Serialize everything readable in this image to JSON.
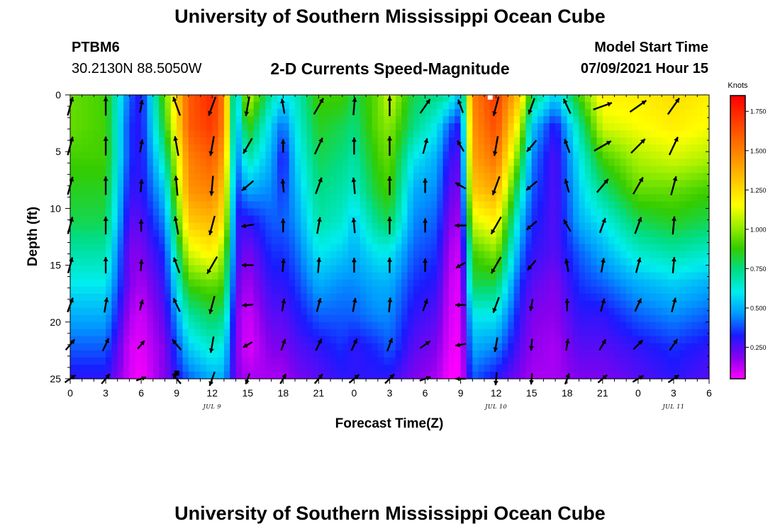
{
  "header": {
    "title": "University of Southern Mississippi Ocean Cube",
    "station": "PTBM6",
    "coords": "30.2130N  88.5050W",
    "subtitle": "2-D Currents Speed-Magnitude",
    "model_label": "Model Start Time",
    "model_time": "07/09/2021 Hour 15"
  },
  "footer": {
    "title": "University of Southern Mississippi Ocean Cube"
  },
  "chart_data": {
    "type": "heatmap",
    "x_title": "Forecast Time(Z)",
    "y_title": "Depth (ft)",
    "x_tick_labels": [
      "0",
      "3",
      "6",
      "9",
      "12",
      "15",
      "18",
      "21",
      "0",
      "3",
      "6",
      "9",
      "12",
      "15",
      "18",
      "21",
      "0",
      "3",
      "6"
    ],
    "x_range_hours": [
      0,
      54
    ],
    "x_major_step_hours": 3,
    "date_labels": [
      {
        "label": "JUL 9",
        "hour": 12
      },
      {
        "label": "JUL 10",
        "hour": 36
      },
      {
        "label": "JUL 11",
        "hour": 51
      }
    ],
    "y_ticks": [
      0,
      5,
      10,
      15,
      20,
      25
    ],
    "y_range": [
      0,
      25
    ],
    "y_inverted": true,
    "colorbar": {
      "title": "Knots",
      "labels": [
        "1.750",
        "1.500",
        "1.250",
        "1.000",
        "0.750",
        "0.500",
        "0.250"
      ],
      "values": [
        1.75,
        1.5,
        1.25,
        1.0,
        0.75,
        0.5,
        0.25
      ],
      "range": [
        0.05,
        1.85
      ],
      "colors": [
        "#ff00ff",
        "#8800ee",
        "#1a1aff",
        "#0099ff",
        "#00eeee",
        "#00dd88",
        "#33cc00",
        "#99ee00",
        "#ffff00",
        "#ffcc00",
        "#ff9900",
        "#ff6600",
        "#ff3300",
        "#ff0000"
      ]
    },
    "speed_profiles": [
      {
        "t": 0,
        "v": [
          0.95,
          0.95,
          0.9,
          0.85,
          0.8,
          0.7,
          0.6,
          0.5,
          0.4,
          0.3
        ]
      },
      {
        "t": 3,
        "v": [
          0.9,
          0.9,
          0.9,
          0.85,
          0.8,
          0.7,
          0.6,
          0.5,
          0.4,
          0.3
        ]
      },
      {
        "t": 5,
        "v": [
          0.4,
          0.35,
          0.35,
          0.3,
          0.25,
          0.2,
          0.2,
          0.15,
          0.1,
          0.1
        ]
      },
      {
        "t": 6,
        "v": [
          0.3,
          0.3,
          0.3,
          0.3,
          0.25,
          0.2,
          0.15,
          0.1,
          0.08,
          0.05
        ]
      },
      {
        "t": 8,
        "v": [
          0.95,
          0.85,
          0.7,
          0.55,
          0.45,
          0.35,
          0.3,
          0.25,
          0.2,
          0.2
        ]
      },
      {
        "t": 10,
        "v": [
          1.6,
          1.6,
          1.5,
          1.45,
          1.3,
          1.1,
          0.9,
          0.7,
          0.55,
          0.4
        ]
      },
      {
        "t": 12,
        "v": [
          1.75,
          1.7,
          1.6,
          1.5,
          1.35,
          1.2,
          0.95,
          0.8,
          0.65,
          0.5
        ]
      },
      {
        "t": 13,
        "v": [
          1.5,
          1.5,
          1.4,
          1.3,
          1.2,
          1.0,
          0.9,
          0.75,
          0.6,
          0.5
        ]
      },
      {
        "t": 14,
        "v": [
          0.5,
          0.45,
          0.4,
          0.35,
          0.3,
          0.3,
          0.25,
          0.2,
          0.2,
          0.2
        ]
      },
      {
        "t": 15,
        "v": [
          1.1,
          0.9,
          0.7,
          0.5,
          0.3,
          0.2,
          0.15,
          0.1,
          0.08,
          0.15
        ]
      },
      {
        "t": 17,
        "v": [
          0.7,
          0.55,
          0.5,
          0.45,
          0.4,
          0.35,
          0.3,
          0.25,
          0.2,
          0.15
        ]
      },
      {
        "t": 18,
        "v": [
          0.6,
          0.4,
          0.3,
          0.35,
          0.4,
          0.35,
          0.3,
          0.25,
          0.2,
          0.15
        ]
      },
      {
        "t": 19,
        "v": [
          0.65,
          0.6,
          0.55,
          0.5,
          0.45,
          0.4,
          0.35,
          0.3,
          0.25,
          0.2
        ]
      },
      {
        "t": 21,
        "v": [
          0.9,
          0.85,
          0.8,
          0.75,
          0.7,
          0.6,
          0.5,
          0.4,
          0.3,
          0.25
        ]
      },
      {
        "t": 23,
        "v": [
          0.9,
          0.8,
          0.75,
          0.7,
          0.65,
          0.55,
          0.45,
          0.4,
          0.35,
          0.3
        ]
      },
      {
        "t": 24,
        "v": [
          0.8,
          0.75,
          0.7,
          0.65,
          0.55,
          0.5,
          0.45,
          0.4,
          0.3,
          0.3
        ]
      },
      {
        "t": 26,
        "v": [
          0.95,
          0.95,
          0.9,
          0.85,
          0.75,
          0.6,
          0.5,
          0.45,
          0.35,
          0.3
        ]
      },
      {
        "t": 27,
        "v": [
          1.1,
          1.0,
          0.95,
          0.9,
          0.8,
          0.6,
          0.5,
          0.45,
          0.4,
          0.3
        ]
      },
      {
        "t": 29,
        "v": [
          0.8,
          0.75,
          0.6,
          0.5,
          0.45,
          0.4,
          0.35,
          0.3,
          0.25,
          0.2
        ]
      },
      {
        "t": 31,
        "v": [
          0.75,
          0.6,
          0.5,
          0.45,
          0.4,
          0.35,
          0.3,
          0.25,
          0.2,
          0.15
        ]
      },
      {
        "t": 32,
        "v": [
          0.7,
          0.4,
          0.3,
          0.25,
          0.2,
          0.15,
          0.12,
          0.1,
          0.08,
          0.05
        ]
      },
      {
        "t": 33,
        "v": [
          0.5,
          0.3,
          0.25,
          0.2,
          0.15,
          0.1,
          0.08,
          0.07,
          0.06,
          0.05
        ]
      },
      {
        "t": 34,
        "v": [
          1.5,
          1.45,
          1.4,
          1.3,
          1.1,
          0.9,
          0.8,
          0.6,
          0.5,
          0.4
        ]
      },
      {
        "t": 36,
        "v": [
          1.7,
          1.65,
          1.55,
          1.4,
          1.2,
          1.0,
          0.8,
          0.6,
          0.45,
          0.3
        ]
      },
      {
        "t": 38,
        "v": [
          1.3,
          1.1,
          0.9,
          0.7,
          0.55,
          0.45,
          0.35,
          0.3,
          0.25,
          0.2
        ]
      },
      {
        "t": 39,
        "v": [
          0.8,
          0.55,
          0.45,
          0.4,
          0.35,
          0.3,
          0.25,
          0.2,
          0.18,
          0.15
        ]
      },
      {
        "t": 41,
        "v": [
          0.55,
          0.3,
          0.25,
          0.25,
          0.25,
          0.25,
          0.2,
          0.18,
          0.15,
          0.15
        ]
      },
      {
        "t": 43,
        "v": [
          0.9,
          0.7,
          0.6,
          0.55,
          0.5,
          0.4,
          0.35,
          0.3,
          0.25,
          0.2
        ]
      },
      {
        "t": 45,
        "v": [
          1.2,
          1.1,
          0.9,
          0.75,
          0.6,
          0.5,
          0.4,
          0.3,
          0.25,
          0.2
        ]
      },
      {
        "t": 48,
        "v": [
          1.2,
          1.15,
          1.05,
          0.95,
          0.8,
          0.65,
          0.5,
          0.4,
          0.3,
          0.25
        ]
      },
      {
        "t": 51,
        "v": [
          1.25,
          1.2,
          1.1,
          0.95,
          0.85,
          0.7,
          0.55,
          0.45,
          0.35,
          0.3
        ]
      },
      {
        "t": 54,
        "v": [
          1.2,
          1.15,
          1.05,
          0.9,
          0.8,
          0.65,
          0.5,
          0.4,
          0.3,
          0.25
        ]
      }
    ],
    "vector_depths_ft": [
      1,
      4.5,
      8,
      11.5,
      15,
      18.5,
      22,
      25
    ],
    "vector_directions_deg": [
      {
        "t": 0,
        "dirs": [
          15,
          15,
          15,
          15,
          15,
          20,
          40,
          55
        ]
      },
      {
        "t": 3,
        "dirs": [
          0,
          0,
          0,
          0,
          0,
          10,
          25,
          40
        ]
      },
      {
        "t": 6,
        "dirs": [
          10,
          10,
          5,
          0,
          5,
          15,
          40,
          70
        ]
      },
      {
        "t": 9,
        "dirs": [
          -20,
          -10,
          -5,
          -10,
          -20,
          -25,
          -40,
          -40
        ]
      },
      {
        "t": 12,
        "dirs": [
          -160,
          -170,
          -175,
          -165,
          -150,
          -165,
          -170,
          -160
        ]
      },
      {
        "t": 15,
        "dirs": [
          -170,
          -150,
          -130,
          -100,
          -90,
          -95,
          -120,
          -160
        ]
      },
      {
        "t": 18,
        "dirs": [
          -10,
          0,
          -5,
          0,
          5,
          10,
          20,
          30
        ]
      },
      {
        "t": 21,
        "dirs": [
          30,
          25,
          20,
          10,
          5,
          15,
          25,
          40
        ]
      },
      {
        "t": 24,
        "dirs": [
          5,
          0,
          -5,
          -5,
          0,
          10,
          25,
          50
        ]
      },
      {
        "t": 27,
        "dirs": [
          0,
          0,
          0,
          0,
          0,
          5,
          20,
          45
        ]
      },
      {
        "t": 30,
        "dirs": [
          35,
          15,
          0,
          0,
          0,
          20,
          55,
          70
        ]
      },
      {
        "t": 33,
        "dirs": [
          -20,
          -30,
          -60,
          -90,
          -120,
          -90,
          -100,
          -90
        ]
      },
      {
        "t": 36,
        "dirs": [
          -165,
          -170,
          -160,
          -150,
          -150,
          -160,
          -170,
          -175
        ]
      },
      {
        "t": 39,
        "dirs": [
          -160,
          -140,
          -130,
          -130,
          -140,
          -170,
          -175,
          -175
        ]
      },
      {
        "t": 42,
        "dirs": [
          -25,
          -20,
          -15,
          -30,
          -10,
          0,
          10,
          20
        ]
      },
      {
        "t": 45,
        "dirs": [
          70,
          60,
          40,
          20,
          10,
          15,
          30,
          50
        ]
      },
      {
        "t": 48,
        "dirs": [
          55,
          45,
          30,
          20,
          15,
          25,
          45,
          60
        ]
      },
      {
        "t": 51,
        "dirs": [
          35,
          25,
          15,
          5,
          5,
          15,
          35,
          55
        ]
      }
    ],
    "markers": [
      {
        "kind": "white-square",
        "t": 35.5,
        "depth": 0.2
      },
      {
        "kind": "black-square",
        "t": 9,
        "depth": 24.5
      }
    ]
  }
}
